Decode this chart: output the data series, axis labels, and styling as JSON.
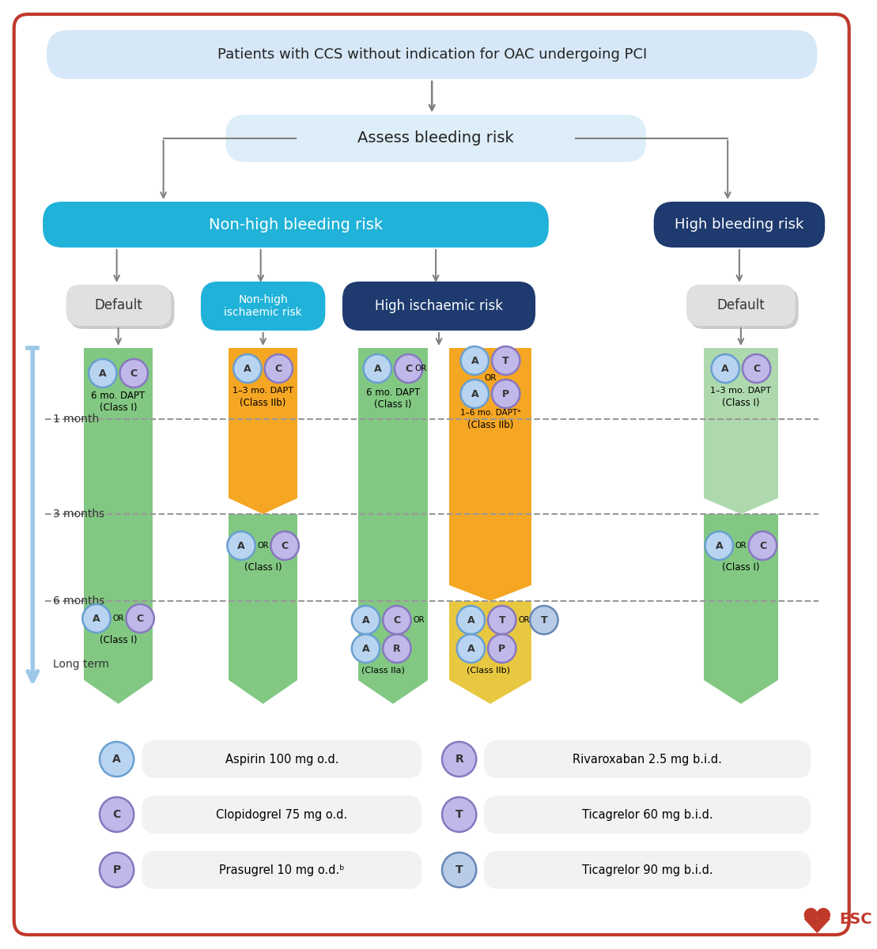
{
  "title_box": "Patients with CCS without indication for OAC undergoing PCI",
  "assess_box": "Assess bleeding risk",
  "non_high_label": "Non-high bleeding risk",
  "high_label": "High bleeding risk",
  "default_label": "Default",
  "non_high_isch_label": "Non-high\nischaemic risk",
  "high_isch_label": "High ischaemic risk",
  "bg_color": "#ffffff",
  "border_color": "#c0392b",
  "title_bg": "#d6e8f7",
  "assess_bg": "#ddeef8",
  "non_high_bleed_bg": "#20b2d8",
  "high_bleed_bg": "#1e3a6e",
  "default_bg": "#e0e0e0",
  "non_high_isch_bg": "#20b2d8",
  "high_isch_bg": "#1e3a6e",
  "green_col": "#82c882",
  "light_green_col": "#aed9ae",
  "orange_col": "#f5a623",
  "gold_col": "#e8c840",
  "time_label_color": "#333333",
  "arrow_color": "#808080",
  "dashed_color": "#999999",
  "A_face": "#b8d4f0",
  "A_edge": "#6a9fd0",
  "C_face": "#c0b8e8",
  "C_edge": "#8878c0",
  "T_face": "#c0b8e8",
  "T_edge": "#8878c0",
  "P_face": "#c0b8e8",
  "P_edge": "#8878c0",
  "R_face": "#c0b8e8",
  "R_edge": "#8878c0",
  "T2_face": "#b8cce8",
  "T2_edge": "#6888b8",
  "legend_box_bg": "#f2f2f2"
}
